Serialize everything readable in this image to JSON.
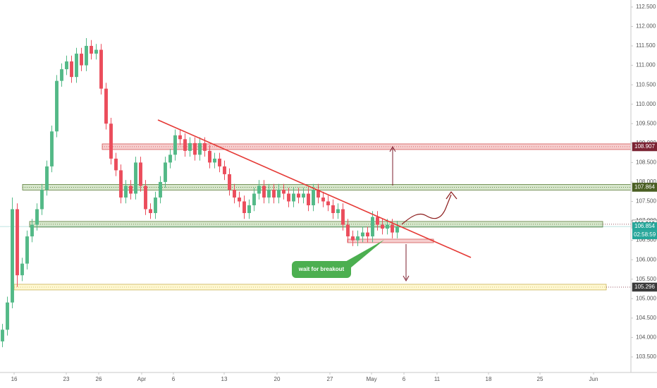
{
  "chart_data": {
    "type": "candlestick",
    "open": [
      103.9,
      104.2,
      104.9,
      107.3,
      105.6,
      105.9,
      106.6,
      106.9,
      107.3,
      107.8,
      108.4,
      109.3,
      110.6,
      110.9,
      111.1,
      110.7,
      111.3,
      111.0,
      111.5,
      111.3,
      111.4,
      110.4,
      109.5,
      108.6,
      108.3,
      107.6,
      107.9,
      107.7,
      108.5,
      107.9,
      107.3,
      107.2,
      107.6,
      108.0,
      108.5,
      108.7,
      109.2,
      109.1,
      108.8,
      109.0,
      108.7,
      109.0,
      108.8,
      108.5,
      108.6,
      108.4,
      108.2,
      107.8,
      107.6,
      107.5,
      107.2,
      107.4,
      107.7,
      107.9,
      107.6,
      107.8,
      107.6,
      107.8,
      107.7,
      107.5,
      107.7,
      107.6,
      107.7,
      107.4,
      107.8,
      107.6,
      107.5,
      107.4,
      107.2,
      107.3,
      106.9,
      106.6,
      106.5,
      106.6,
      106.7,
      106.6,
      107.1,
      106.9,
      106.8,
      106.9,
      106.7
    ],
    "high": [
      104.35,
      105.05,
      107.6,
      107.45,
      106.05,
      106.75,
      107.05,
      107.45,
      107.95,
      108.55,
      109.45,
      110.75,
      111.05,
      111.25,
      111.25,
      111.45,
      111.45,
      111.7,
      111.65,
      111.55,
      111.55,
      110.55,
      109.65,
      108.75,
      108.45,
      108.05,
      108.05,
      108.65,
      108.65,
      108.05,
      107.45,
      107.75,
      108.15,
      108.65,
      108.85,
      109.35,
      109.35,
      109.25,
      109.15,
      109.15,
      109.15,
      109.15,
      108.95,
      108.75,
      108.75,
      108.55,
      108.35,
      107.95,
      107.75,
      107.65,
      107.55,
      107.85,
      108.05,
      108.05,
      107.95,
      107.95,
      107.95,
      107.95,
      107.85,
      107.85,
      107.85,
      107.85,
      107.85,
      107.95,
      107.95,
      107.75,
      107.65,
      107.55,
      107.45,
      107.45,
      107.05,
      106.75,
      106.75,
      106.85,
      106.85,
      107.25,
      107.25,
      107.05,
      107.05,
      107.05,
      107.0
    ],
    "low": [
      103.75,
      104.05,
      104.75,
      105.3,
      105.45,
      105.75,
      106.45,
      106.75,
      107.15,
      107.65,
      108.25,
      109.15,
      110.45,
      110.75,
      110.55,
      110.55,
      110.85,
      110.85,
      111.15,
      111.15,
      110.25,
      109.35,
      108.45,
      108.15,
      107.45,
      107.45,
      107.55,
      107.55,
      107.75,
      107.15,
      107.05,
      107.05,
      107.45,
      107.85,
      108.35,
      108.55,
      108.95,
      108.65,
      108.65,
      108.55,
      108.55,
      108.65,
      108.35,
      108.35,
      108.25,
      108.05,
      107.65,
      107.45,
      107.35,
      107.05,
      107.05,
      107.25,
      107.55,
      107.45,
      107.45,
      107.45,
      107.45,
      107.55,
      107.35,
      107.35,
      107.45,
      107.45,
      107.25,
      107.25,
      107.45,
      107.35,
      107.25,
      107.05,
      107.05,
      106.75,
      106.45,
      106.35,
      106.35,
      106.45,
      106.45,
      106.45,
      106.75,
      106.65,
      106.65,
      106.55,
      106.55
    ],
    "close": [
      104.2,
      104.9,
      107.3,
      105.6,
      105.9,
      106.6,
      106.9,
      107.3,
      107.8,
      108.4,
      109.3,
      110.6,
      110.9,
      111.1,
      110.7,
      111.3,
      111.0,
      111.5,
      111.3,
      111.4,
      110.4,
      109.5,
      108.6,
      108.3,
      107.6,
      107.9,
      107.7,
      108.5,
      107.9,
      107.3,
      107.2,
      107.6,
      108.0,
      108.5,
      108.7,
      109.2,
      109.1,
      108.8,
      109.0,
      108.7,
      109.0,
      108.8,
      108.5,
      108.6,
      108.4,
      108.2,
      107.8,
      107.6,
      107.5,
      107.2,
      107.4,
      107.7,
      107.9,
      107.6,
      107.8,
      107.6,
      107.8,
      107.7,
      107.5,
      107.7,
      107.6,
      107.7,
      107.4,
      107.8,
      107.6,
      107.5,
      107.4,
      107.2,
      107.3,
      106.9,
      106.6,
      106.5,
      106.6,
      106.7,
      106.6,
      107.1,
      106.9,
      106.8,
      106.9,
      106.7,
      106.854
    ],
    "colors": {
      "up": "#53b987",
      "down": "#eb4d5c"
    },
    "xlim": [
      -0.5,
      127.36
    ],
    "xticks": [
      {
        "value": 2.36,
        "label": "16"
      },
      {
        "value": 12.93,
        "label": "23"
      },
      {
        "value": 19.5,
        "label": "26"
      },
      {
        "value": 28.21,
        "label": "Apr"
      },
      {
        "value": 34.64,
        "label": "6"
      },
      {
        "value": 44.93,
        "label": "13"
      },
      {
        "value": 55.64,
        "label": "20"
      },
      {
        "value": 66.36,
        "label": "27"
      },
      {
        "value": 74.79,
        "label": "May"
      },
      {
        "value": 81.36,
        "label": "6"
      },
      {
        "value": 88.07,
        "label": "11"
      },
      {
        "value": 98.5,
        "label": "18"
      },
      {
        "value": 108.93,
        "label": "25"
      },
      {
        "value": 119.79,
        "label": "Jun"
      }
    ],
    "ylim": [
      103.1,
      112.68
    ],
    "yticks": [
      {
        "value": 103.5,
        "label": "103.500"
      },
      {
        "value": 104,
        "label": "104.000"
      },
      {
        "value": 104.5,
        "label": "104.500"
      },
      {
        "value": 105,
        "label": "105.000"
      },
      {
        "value": 105.5,
        "label": "105.500"
      },
      {
        "value": 106,
        "label": "106.000"
      },
      {
        "value": 106.5,
        "label": "106.500"
      },
      {
        "value": 107,
        "label": "107.000"
      },
      {
        "value": 107.5,
        "label": "107.500"
      },
      {
        "value": 108,
        "label": "108.000"
      },
      {
        "value": 108.5,
        "label": "108.500"
      },
      {
        "value": 109,
        "label": "109.000"
      },
      {
        "value": 109.5,
        "label": "109.500"
      },
      {
        "value": 110,
        "label": "110.000"
      },
      {
        "value": 110.5,
        "label": "110.500"
      },
      {
        "value": 111,
        "label": "111.000"
      },
      {
        "value": 111.5,
        "label": "111.500"
      },
      {
        "value": 112,
        "label": "112.000"
      },
      {
        "value": 112.5,
        "label": "112.500"
      }
    ],
    "levels": [
      {
        "value": 108.907,
        "color": "#7b2333",
        "fill": "rgba(229,115,115,0.35)",
        "stroke": "#d45a5a"
      },
      {
        "value": 107.864,
        "color": "#4a5e23",
        "fill": "rgba(165,200,140,0.45)",
        "stroke": "#5f7f3e"
      },
      {
        "value": 106.912,
        "color": "#ffffff",
        "fill": "rgba(165,200,140,0.45)",
        "stroke": "#5f7f3e"
      },
      {
        "value": 105.296,
        "color": "#3a3a3a",
        "fill": "rgba(255,238,140,0.4)",
        "stroke": "#c9b458"
      }
    ],
    "last_price": 106.854,
    "last_color": "#26a69a",
    "countdown": "02:58:59",
    "annotation": "wait for breakout"
  }
}
